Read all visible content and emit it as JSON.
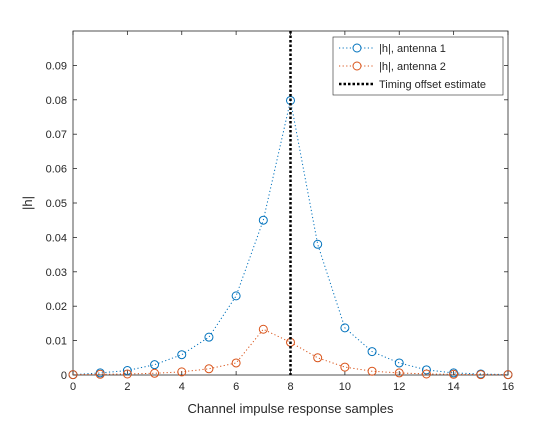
{
  "chart_data": {
    "type": "line",
    "title": "",
    "xlabel": "Channel impulse response samples",
    "ylabel": "|h|",
    "xlim": [
      0,
      16
    ],
    "ylim": [
      0,
      0.1
    ],
    "xticks": [
      0,
      2,
      4,
      6,
      8,
      10,
      12,
      14,
      16
    ],
    "yticks": [
      0,
      0.01,
      0.02,
      0.03,
      0.04,
      0.05,
      0.06,
      0.07,
      0.08,
      0.09
    ],
    "grid": false,
    "legend_position": "top-right",
    "x": [
      0,
      1,
      2,
      3,
      4,
      5,
      6,
      7,
      8,
      9,
      10,
      11,
      12,
      13,
      14,
      15,
      16
    ],
    "series": [
      {
        "name": "|h|, antenna 1",
        "color": "#0072BD",
        "linestyle": "dotted",
        "marker": "circle",
        "values": [
          0.0001,
          0.0006,
          0.0013,
          0.003,
          0.0059,
          0.011,
          0.023,
          0.045,
          0.0798,
          0.038,
          0.0137,
          0.0068,
          0.0035,
          0.0015,
          0.0006,
          0.0003,
          0.0001
        ]
      },
      {
        "name": "|h|, antenna 2",
        "color": "#D95319",
        "linestyle": "dotted",
        "marker": "circle",
        "values": [
          0.0001,
          0.0002,
          0.0003,
          0.0005,
          0.0009,
          0.0018,
          0.0035,
          0.0133,
          0.0095,
          0.005,
          0.0023,
          0.0011,
          0.0006,
          0.0003,
          0.0002,
          0.0001,
          0.0001
        ]
      }
    ],
    "vline": {
      "name": "Timing offset estimate",
      "x": 8,
      "color": "#000000",
      "linestyle": "dotted"
    }
  }
}
